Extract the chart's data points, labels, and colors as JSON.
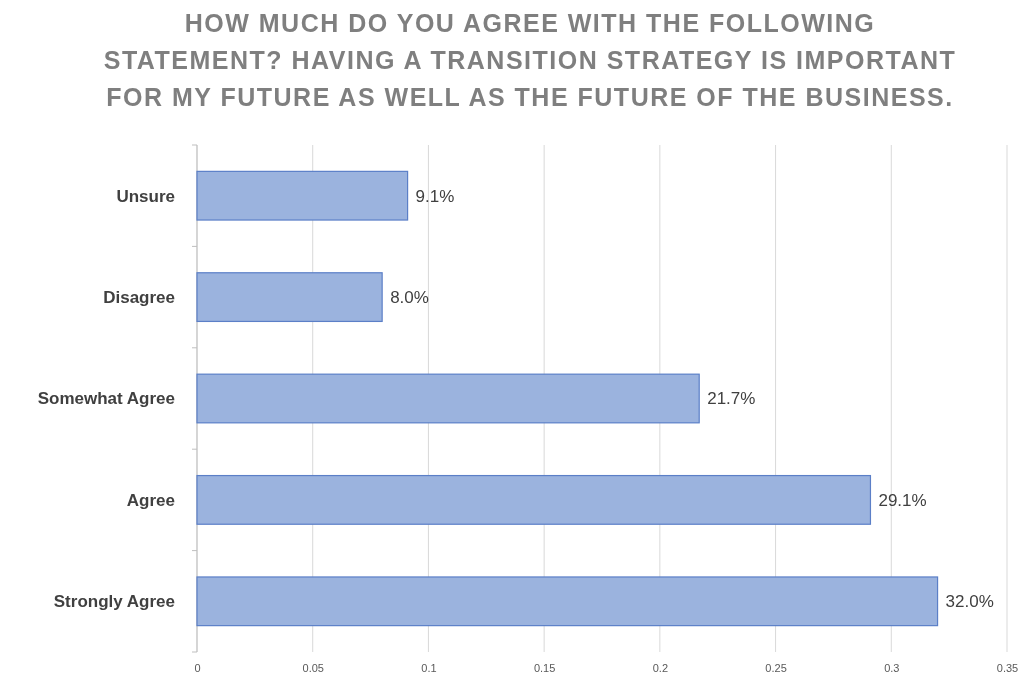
{
  "chart_data": {
    "type": "bar",
    "orientation": "horizontal",
    "title": "HOW MUCH DO YOU AGREE WITH THE FOLLOWING STATEMENT? HAVING A TRANSITION STRATEGY IS IMPORTANT FOR MY FUTURE AS WELL AS THE FUTURE OF THE BUSINESS.",
    "categories": [
      "Unsure",
      "Disagree",
      "Somewhat Agree",
      "Agree",
      "Strongly Agree"
    ],
    "values": [
      0.091,
      0.08,
      0.217,
      0.291,
      0.32
    ],
    "value_labels": [
      "9.1%",
      "8.0%",
      "21.7%",
      "29.1%",
      "32.0%"
    ],
    "color": "#9bb3de",
    "xlim": [
      0,
      0.35
    ],
    "xticks": [
      0,
      0.05,
      0.1,
      0.15,
      0.2,
      0.25,
      0.3,
      0.35
    ],
    "grid": "x"
  }
}
